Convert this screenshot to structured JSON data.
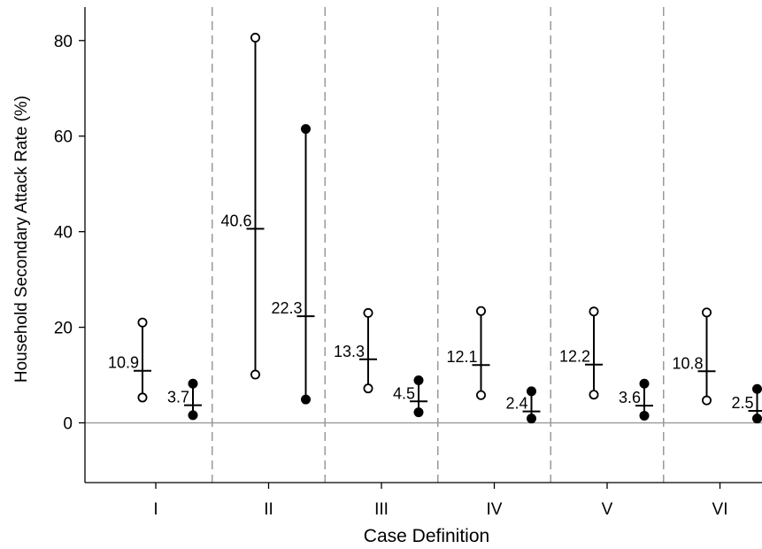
{
  "chart_data": {
    "type": "scatter",
    "title": "",
    "xlabel": "Case Definition",
    "ylabel": "Household Secondary Attack Rate (%)",
    "ylim": [
      -12.5,
      87
    ],
    "yticks": [
      0,
      20,
      40,
      60,
      80
    ],
    "zero_line": true,
    "grid": false,
    "categories": [
      "I",
      "II",
      "III",
      "IV",
      "V",
      "VI"
    ],
    "series": [
      {
        "marker": "open-circle",
        "points": [
          {
            "category": "I",
            "estimate": 10.9,
            "low": 5.3,
            "high": 21.0,
            "label": "10.9"
          },
          {
            "category": "II",
            "estimate": 40.6,
            "low": 10.1,
            "high": 80.6,
            "label": "40.6"
          },
          {
            "category": "III",
            "estimate": 13.3,
            "low": 7.2,
            "high": 23.0,
            "label": "13.3"
          },
          {
            "category": "IV",
            "estimate": 12.1,
            "low": 5.8,
            "high": 23.4,
            "label": "12.1"
          },
          {
            "category": "V",
            "estimate": 12.2,
            "low": 5.9,
            "high": 23.3,
            "label": "12.2"
          },
          {
            "category": "VI",
            "estimate": 10.8,
            "low": 4.7,
            "high": 23.1,
            "label": "10.8"
          }
        ]
      },
      {
        "marker": "filled-circle",
        "points": [
          {
            "category": "I",
            "estimate": 3.7,
            "low": 1.6,
            "high": 8.2,
            "label": "3.7"
          },
          {
            "category": "II",
            "estimate": 22.3,
            "low": 4.9,
            "high": 61.5,
            "label": "22.3"
          },
          {
            "category": "III",
            "estimate": 4.5,
            "low": 2.2,
            "high": 8.9,
            "label": "4.5"
          },
          {
            "category": "IV",
            "estimate": 2.4,
            "low": 0.9,
            "high": 6.6,
            "label": "2.4"
          },
          {
            "category": "V",
            "estimate": 3.6,
            "low": 1.5,
            "high": 8.2,
            "label": "3.6"
          },
          {
            "category": "VI",
            "estimate": 2.5,
            "low": 0.9,
            "high": 7.1,
            "label": "2.5"
          }
        ]
      }
    ]
  }
}
